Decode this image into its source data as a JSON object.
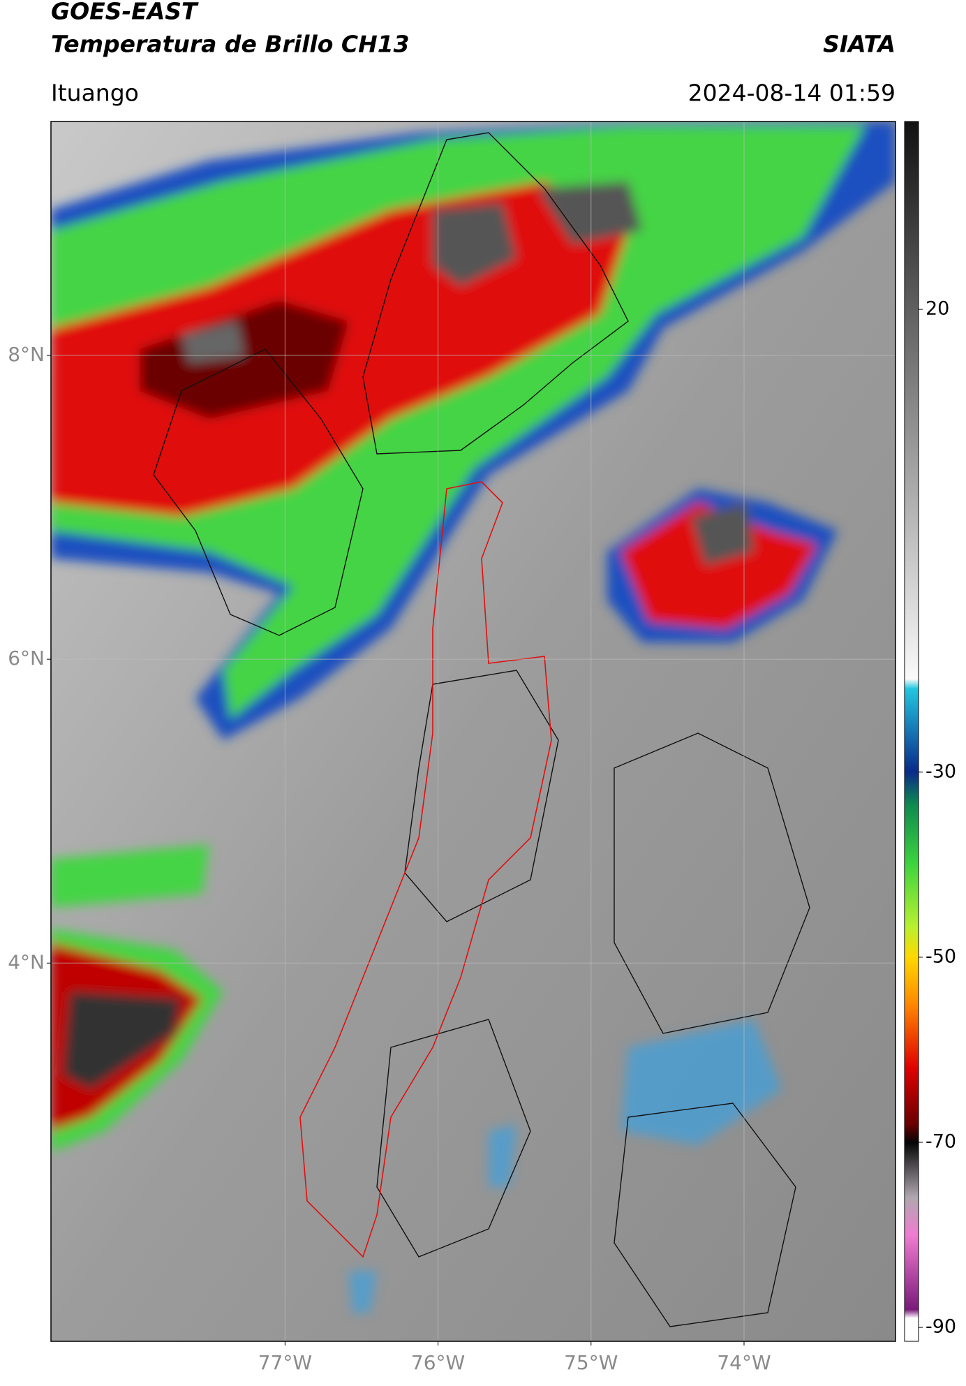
{
  "chart_data": {
    "type": "map",
    "title": "GOES-EAST",
    "subtitle": "Temperatura de Brillo CH13",
    "source": "SIATA",
    "location": "Ituango",
    "timestamp": "2024-08-14 01:59",
    "xlim": [
      -78.53,
      -73.01
    ],
    "ylim": [
      1.51,
      9.54
    ],
    "xticks": [
      {
        "value": -77,
        "label": "77°W"
      },
      {
        "value": -76,
        "label": "76°W"
      },
      {
        "value": -75,
        "label": "75°W"
      },
      {
        "value": -74,
        "label": "74°W"
      }
    ],
    "yticks": [
      {
        "value": 4,
        "label": "4°N"
      },
      {
        "value": 6,
        "label": "6°N"
      },
      {
        "value": 8,
        "label": "8°N"
      }
    ],
    "grid": true,
    "colorbar": {
      "lim": [
        -91.5,
        40.3
      ],
      "ticks": [
        20,
        -30,
        -50,
        -70,
        -90
      ]
    }
  }
}
